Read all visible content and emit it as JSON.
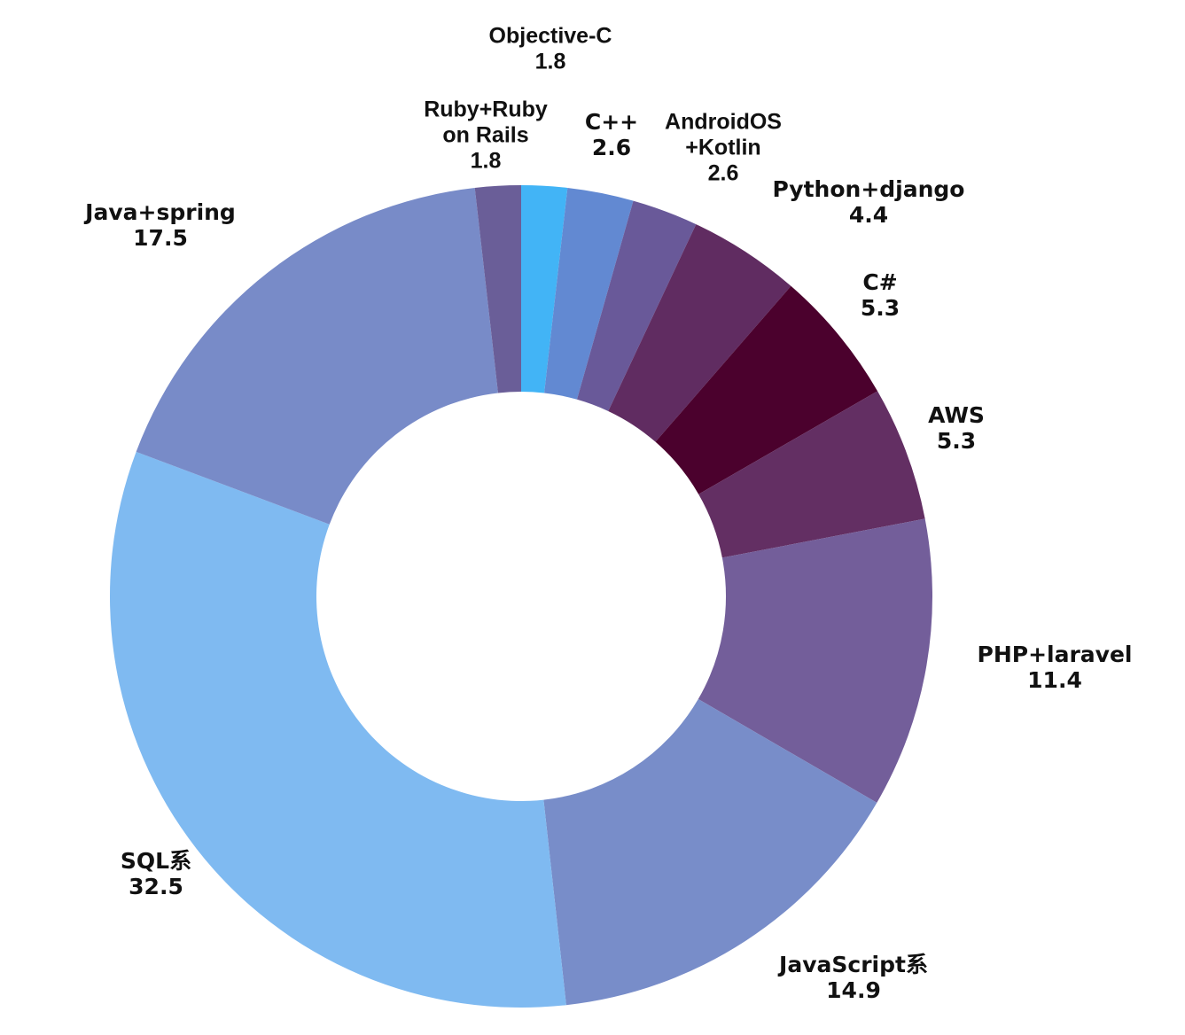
{
  "chart_data": {
    "type": "pie",
    "variant": "donut",
    "start": "top",
    "direction": "clockwise",
    "grid": false,
    "legend": "none",
    "slices": [
      {
        "label": "Objective-C",
        "label_lines": [
          "Objective-C"
        ],
        "value": 1.8,
        "value_text": "1.8",
        "color": "#42b4f6"
      },
      {
        "label": "C++",
        "label_lines": [
          "C++"
        ],
        "value": 2.6,
        "value_text": "2.6",
        "color": "#6289d2"
      },
      {
        "label": "AndroidOS+Kotlin",
        "label_lines": [
          "AndroidOS",
          "+Kotlin"
        ],
        "value": 2.6,
        "value_text": "2.6",
        "color": "#695999"
      },
      {
        "label": "Python+django",
        "label_lines": [
          "Python+django"
        ],
        "value": 4.4,
        "value_text": "4.4",
        "color": "#602c61"
      },
      {
        "label": "C#",
        "label_lines": [
          "C#"
        ],
        "value": 5.3,
        "value_text": "5.3",
        "color": "#4b012d"
      },
      {
        "label": "AWS",
        "label_lines": [
          "AWS"
        ],
        "value": 5.3,
        "value_text": "5.3",
        "color": "#632f63"
      },
      {
        "label": "PHP+laravel",
        "label_lines": [
          "PHP+laravel"
        ],
        "value": 11.4,
        "value_text": "11.4",
        "color": "#735e9a"
      },
      {
        "label": "JavaScript系",
        "label_lines": [
          "JavaScript系"
        ],
        "value": 14.9,
        "value_text": "14.9",
        "color": "#788dc9"
      },
      {
        "label": "SQL系",
        "label_lines": [
          "SQL系"
        ],
        "value": 32.5,
        "value_text": "32.5",
        "color": "#7fbaf1"
      },
      {
        "label": "Java+spring",
        "label_lines": [
          "Java+spring"
        ],
        "value": 17.5,
        "value_text": "17.5",
        "color": "#788bc8"
      },
      {
        "label": "Ruby+Ruby on Rails",
        "label_lines": [
          "Ruby+Ruby",
          "on Rails"
        ],
        "value": 1.8,
        "value_text": "1.8",
        "color": "#6a5e98"
      }
    ]
  }
}
